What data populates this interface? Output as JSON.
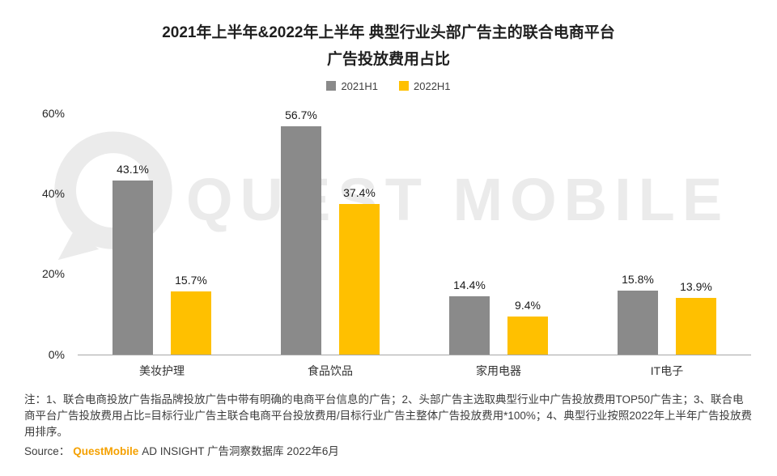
{
  "chart_data": {
    "type": "bar",
    "title_lines": [
      "2021年上半年&2022年上半年 典型行业头部广告主的联合电商平台",
      "广告投放费用占比"
    ],
    "categories": [
      "美妆护理",
      "食品饮品",
      "家用电器",
      "IT电子"
    ],
    "series": [
      {
        "name": "2021H1",
        "color": "#8A8A8A",
        "values": [
          43.1,
          56.7,
          14.4,
          15.8
        ]
      },
      {
        "name": "2022H1",
        "color": "#FFC000",
        "values": [
          15.7,
          37.4,
          9.4,
          13.9
        ]
      }
    ],
    "value_suffix": "%",
    "ylim": [
      0,
      60
    ],
    "yticks": [
      {
        "value": 0,
        "label": "0%"
      },
      {
        "value": 20,
        "label": "20%"
      },
      {
        "value": 40,
        "label": "40%"
      },
      {
        "value": 60,
        "label": "60%"
      }
    ],
    "grid": false,
    "legend_position": "top"
  },
  "watermark": {
    "text": "QUEST MOBILE"
  },
  "notes": {
    "text": "注：1、联合电商投放广告指品牌投放广告中带有明确的电商平台信息的广告；2、头部广告主选取典型行业中广告投放费用TOP50广告主；3、联合电商平台广告投放费用占比=目标行业广告主联合电商平台投放费用/目标行业广告主整体广告投放费用*100%；4、典型行业按照2022年上半年广告投放费用排序。"
  },
  "source": {
    "prefix": "Source：",
    "brand": "QuestMobile",
    "suffix": "AD INSIGHT 广告洞察数据库 2022年6月"
  }
}
